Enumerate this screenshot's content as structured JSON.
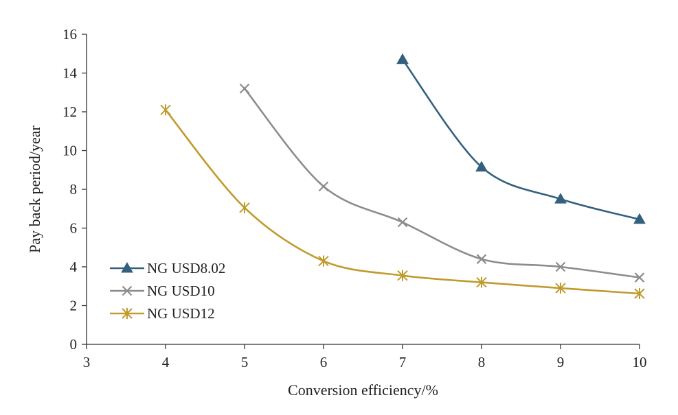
{
  "chart_data": {
    "type": "line",
    "title": "",
    "xlabel": "Conversion efficiency/%",
    "ylabel": "Pay back period/year",
    "xlim": [
      3,
      10
    ],
    "ylim": [
      0,
      16
    ],
    "xticks": [
      "3",
      "4",
      "5",
      "6",
      "7",
      "8",
      "9",
      "10"
    ],
    "yticks": [
      "0",
      "2",
      "4",
      "6",
      "8",
      "10",
      "12",
      "14",
      "16"
    ],
    "grid": false,
    "legend_position": "lower-left",
    "series": [
      {
        "name": "NG USD8.02",
        "marker": "triangle",
        "color": "#33607f",
        "x": [
          7,
          8,
          9,
          10
        ],
        "y": [
          14.7,
          9.15,
          7.5,
          6.45
        ]
      },
      {
        "name": "NG USD10",
        "marker": "x",
        "color": "#8c8c8c",
        "x": [
          5,
          6,
          7,
          8,
          9,
          10
        ],
        "y": [
          13.2,
          8.15,
          6.3,
          4.4,
          4.0,
          3.45
        ]
      },
      {
        "name": "NG USD12",
        "marker": "asterisk",
        "color": "#c19a2c",
        "x": [
          4,
          5,
          6,
          7,
          8,
          9,
          10
        ],
        "y": [
          12.1,
          7.05,
          4.3,
          3.55,
          3.2,
          2.9,
          2.62
        ]
      }
    ]
  }
}
